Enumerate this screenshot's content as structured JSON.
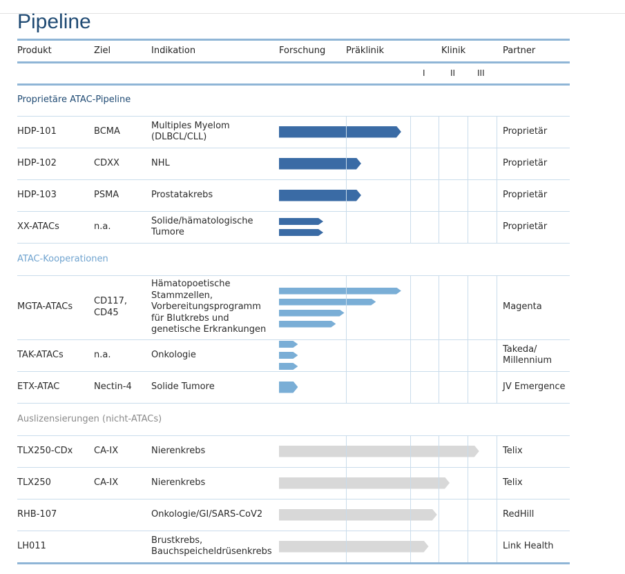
{
  "title": "Pipeline",
  "headers": {
    "product": "Produkt",
    "target": "Ziel",
    "indication": "Indikation",
    "research": "Forschung",
    "preclinic": "Präklinik",
    "clinic": "Klinik",
    "partner": "Partner"
  },
  "phases": [
    "I",
    "II",
    "III"
  ],
  "colors": {
    "title": "#1f4a73",
    "rule": "#8fb5d6",
    "grid": "#c9dceb",
    "proprietary_bar": "#3a6ba5",
    "cooperation_bar": "#7aaed6",
    "outlicense_bar": "#d8d8d8",
    "section_proprietary": "#1f4a73",
    "section_cooperation": "#6fa3cf",
    "section_outlicense": "#8a8a8a"
  },
  "sections": [
    {
      "label": "Proprietäre ATAC-Pipeline",
      "bar_color": "#3a6ba5",
      "rows": [
        {
          "product": "HDP-101",
          "target": "BCMA",
          "indication": "Multiples Myelom (DLBCL/CLL)",
          "partner": "Proprietär",
          "progress": [
            0.58
          ]
        },
        {
          "product": "HDP-102",
          "target": "CDXX",
          "indication": "NHL",
          "partner": "Proprietär",
          "progress": [
            0.39
          ]
        },
        {
          "product": "HDP-103",
          "target": "PSMA",
          "indication": "Prostatakrebs",
          "partner": "Proprietär",
          "progress": [
            0.39
          ]
        },
        {
          "product": "XX-ATACs",
          "target": "n.a.",
          "indication": "Solide/hämatologische Tumore",
          "partner": "Proprietär",
          "progress": [
            0.21,
            0.21
          ]
        }
      ]
    },
    {
      "label": "ATAC-Kooperationen",
      "bar_color": "#7aaed6",
      "rows": [
        {
          "product": "MGTA-ATACs",
          "target": "CD117, CD45",
          "indication": "Hämatopoetische Stammzellen, Vorbereitungsprogramm für Blutkrebs und genetische Erkrankungen",
          "partner": "Magenta",
          "progress": [
            0.58,
            0.46,
            0.31,
            0.27
          ]
        },
        {
          "product": "TAK-ATACs",
          "target": "n.a.",
          "indication": "Onkologie",
          "partner": "Takeda/ Millennium",
          "progress": [
            0.09,
            0.09,
            0.09
          ]
        },
        {
          "product": "ETX-ATAC",
          "target": "Nectin-4",
          "indication": "Solide Tumore",
          "partner": "JV Emergence",
          "progress": [
            0.09
          ]
        }
      ]
    },
    {
      "label": "Auslizensierungen (nicht-ATACs)",
      "bar_color": "#d8d8d8",
      "rows": [
        {
          "product": "TLX250-CDx",
          "target": "CA-IX",
          "indication": "Nierenkrebs",
          "partner": "Telix",
          "progress": [
            0.95
          ]
        },
        {
          "product": "TLX250",
          "target": "CA-IX",
          "indication": "Nierenkrebs",
          "partner": "Telix",
          "progress": [
            0.81
          ]
        },
        {
          "product": "RHB-107",
          "target": "",
          "indication": "Onkologie/GI/SARS-CoV2",
          "partner": "RedHill",
          "progress": [
            0.75
          ]
        },
        {
          "product": "LH011",
          "target": "",
          "indication": "Brustkrebs, Bauchspeicheldrüsenkrebs",
          "partner": "Link Health",
          "progress": [
            0.71
          ]
        }
      ]
    }
  ]
}
